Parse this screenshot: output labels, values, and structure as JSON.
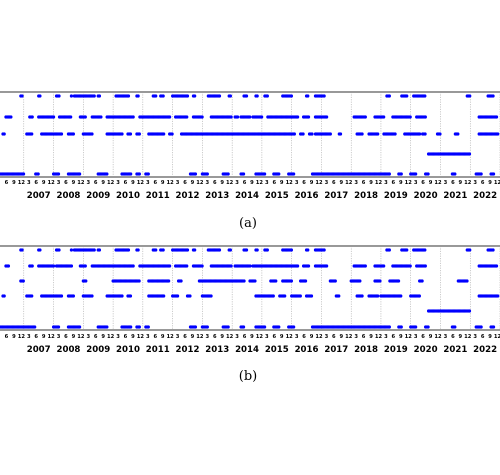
{
  "colors": {
    "marker": "#0000ff",
    "frame": "#000000",
    "grid": "#9a9a9a"
  },
  "chart_data": [
    {
      "type": "scatter",
      "caption": "(a)",
      "x_range": [
        2006.2,
        2023.0
      ],
      "month_ticks": [
        "3",
        "6",
        "9",
        "12"
      ],
      "year_labels": [
        "2007",
        "2008",
        "2009",
        "2010",
        "2011",
        "2012",
        "2013",
        "2014",
        "2015",
        "2016",
        "2017",
        "2018",
        "2019",
        "2020",
        "2021",
        "2022"
      ],
      "grid": "dotted vertical lines at year boundaries",
      "levels": [
        {
          "level": 5,
          "segments": [
            [
              2006.9,
              2006.95
            ],
            [
              2007.5,
              2007.55
            ],
            [
              2008.1,
              2008.2
            ],
            [
              2008.6,
              2008.62
            ],
            [
              2008.7,
              2009.4
            ],
            [
              2009.5,
              2009.55
            ],
            [
              2010.1,
              2010.55
            ],
            [
              2010.8,
              2010.85
            ],
            [
              2011.35,
              2011.45
            ],
            [
              2011.6,
              2011.7
            ],
            [
              2012.0,
              2012.5
            ],
            [
              2012.7,
              2012.75
            ],
            [
              2013.2,
              2013.6
            ],
            [
              2013.9,
              2013.95
            ],
            [
              2014.4,
              2014.5
            ],
            [
              2014.8,
              2014.85
            ],
            [
              2015.1,
              2015.2
            ],
            [
              2015.7,
              2016.0
            ],
            [
              2016.5,
              2016.55
            ],
            [
              2016.8,
              2017.1
            ],
            [
              2019.2,
              2019.3
            ],
            [
              2019.7,
              2019.9
            ],
            [
              2020.1,
              2020.5
            ],
            [
              2021.9,
              2022.0
            ],
            [
              2022.6,
              2022.8
            ]
          ]
        },
        {
          "level": 4,
          "segments": [
            [
              2006.4,
              2006.6
            ],
            [
              2007.2,
              2007.3
            ],
            [
              2007.5,
              2008.0
            ],
            [
              2008.2,
              2008.6
            ],
            [
              2008.9,
              2009.1
            ],
            [
              2009.3,
              2009.6
            ],
            [
              2009.8,
              2010.7
            ],
            [
              2010.9,
              2011.9
            ],
            [
              2012.1,
              2012.5
            ],
            [
              2012.7,
              2013.0
            ],
            [
              2013.3,
              2014.0
            ],
            [
              2014.1,
              2014.2
            ],
            [
              2014.3,
              2014.6
            ],
            [
              2014.7,
              2015.0
            ],
            [
              2015.2,
              2016.2
            ],
            [
              2016.4,
              2016.6
            ],
            [
              2016.8,
              2017.2
            ],
            [
              2018.1,
              2018.5
            ],
            [
              2018.8,
              2019.1
            ],
            [
              2019.4,
              2020.0
            ],
            [
              2020.2,
              2020.5
            ],
            [
              2022.3,
              2022.9
            ]
          ]
        },
        {
          "level": 3,
          "segments": [
            [
              2006.3,
              2006.35
            ],
            [
              2007.1,
              2007.3
            ],
            [
              2007.6,
              2008.3
            ],
            [
              2008.5,
              2008.7
            ],
            [
              2009.0,
              2009.3
            ],
            [
              2009.8,
              2010.3
            ],
            [
              2010.5,
              2010.6
            ],
            [
              2010.8,
              2010.9
            ],
            [
              2011.2,
              2011.7
            ],
            [
              2011.9,
              2012.0
            ],
            [
              2012.3,
              2016.1
            ],
            [
              2016.3,
              2016.4
            ],
            [
              2016.6,
              2016.7
            ],
            [
              2016.8,
              2017.3
            ],
            [
              2017.6,
              2017.65
            ],
            [
              2018.2,
              2018.4
            ],
            [
              2018.6,
              2018.9
            ],
            [
              2019.1,
              2019.5
            ],
            [
              2019.8,
              2020.3
            ],
            [
              2020.4,
              2020.5
            ],
            [
              2020.9,
              2021.0
            ],
            [
              2021.5,
              2021.6
            ],
            [
              2022.3,
              2022.95
            ]
          ]
        },
        {
          "level": 2,
          "segments": [
            [
              2020.6,
              2022.0
            ]
          ]
        },
        {
          "level": 1,
          "segments": [
            [
              2006.2,
              2007.0
            ],
            [
              2007.4,
              2007.5
            ],
            [
              2008.0,
              2008.2
            ],
            [
              2008.5,
              2008.9
            ],
            [
              2009.5,
              2009.8
            ],
            [
              2010.3,
              2010.6
            ],
            [
              2010.8,
              2010.9
            ],
            [
              2011.1,
              2011.2
            ],
            [
              2012.6,
              2012.8
            ],
            [
              2013.0,
              2013.2
            ],
            [
              2013.7,
              2013.9
            ],
            [
              2014.3,
              2014.4
            ],
            [
              2014.8,
              2015.1
            ],
            [
              2015.4,
              2015.6
            ],
            [
              2015.9,
              2016.1
            ],
            [
              2016.7,
              2019.3
            ],
            [
              2019.6,
              2019.7
            ],
            [
              2020.0,
              2020.2
            ],
            [
              2020.5,
              2020.6
            ],
            [
              2021.4,
              2021.5
            ],
            [
              2022.2,
              2022.4
            ],
            [
              2022.7,
              2022.8
            ]
          ]
        }
      ]
    },
    {
      "type": "scatter",
      "caption": "(b)",
      "x_range": [
        2006.2,
        2023.0
      ],
      "month_ticks": [
        "3",
        "6",
        "9",
        "12"
      ],
      "year_labels": [
        "2007",
        "2008",
        "2009",
        "2010",
        "2011",
        "2012",
        "2013",
        "2014",
        "2015",
        "2016",
        "2017",
        "2018",
        "2019",
        "2020",
        "2021",
        "2022"
      ],
      "grid": "dotted vertical lines at year boundaries",
      "levels": [
        {
          "level": 5,
          "segments": [
            [
              2006.9,
              2006.95
            ],
            [
              2007.5,
              2007.55
            ],
            [
              2008.1,
              2008.2
            ],
            [
              2008.6,
              2008.62
            ],
            [
              2008.7,
              2009.4
            ],
            [
              2009.5,
              2009.55
            ],
            [
              2010.1,
              2010.55
            ],
            [
              2010.8,
              2010.85
            ],
            [
              2011.35,
              2011.45
            ],
            [
              2011.6,
              2011.7
            ],
            [
              2012.0,
              2012.5
            ],
            [
              2012.7,
              2012.75
            ],
            [
              2013.2,
              2013.6
            ],
            [
              2013.9,
              2013.95
            ],
            [
              2014.4,
              2014.5
            ],
            [
              2014.8,
              2014.85
            ],
            [
              2015.1,
              2015.2
            ],
            [
              2015.7,
              2016.0
            ],
            [
              2016.5,
              2016.55
            ],
            [
              2016.8,
              2017.1
            ],
            [
              2019.2,
              2019.3
            ],
            [
              2019.7,
              2019.9
            ],
            [
              2020.1,
              2020.5
            ],
            [
              2021.9,
              2022.0
            ],
            [
              2022.6,
              2022.8
            ]
          ]
        },
        {
          "level": 4,
          "segments": [
            [
              2006.4,
              2006.5
            ],
            [
              2007.2,
              2007.3
            ],
            [
              2007.5,
              2008.0
            ],
            [
              2008.1,
              2008.6
            ],
            [
              2008.9,
              2009.1
            ],
            [
              2009.3,
              2010.7
            ],
            [
              2010.9,
              2011.9
            ],
            [
              2012.1,
              2012.5
            ],
            [
              2012.7,
              2013.0
            ],
            [
              2013.3,
              2014.0
            ],
            [
              2014.1,
              2014.6
            ],
            [
              2014.7,
              2016.2
            ],
            [
              2016.4,
              2016.6
            ],
            [
              2016.8,
              2017.2
            ],
            [
              2018.1,
              2018.5
            ],
            [
              2018.8,
              2019.1
            ],
            [
              2019.4,
              2020.0
            ],
            [
              2020.2,
              2020.5
            ],
            [
              2022.3,
              2022.9
            ]
          ]
        },
        {
          "level": 3,
          "segments": [
            [
              2006.3,
              2006.35
            ],
            [
              2007.1,
              2007.3
            ],
            [
              2007.6,
              2008.3
            ],
            [
              2008.5,
              2008.7
            ],
            [
              2009.0,
              2009.3
            ],
            [
              2009.8,
              2010.3
            ],
            [
              2010.5,
              2010.6
            ],
            [
              2011.2,
              2011.7
            ],
            [
              2012.0,
              2012.2
            ],
            [
              2012.5,
              2012.6
            ],
            [
              2013.0,
              2013.3
            ],
            [
              2014.8,
              2015.4
            ],
            [
              2015.6,
              2015.8
            ],
            [
              2016.0,
              2016.3
            ],
            [
              2016.5,
              2016.7
            ],
            [
              2017.5,
              2017.6
            ],
            [
              2018.2,
              2018.4
            ],
            [
              2018.6,
              2018.9
            ],
            [
              2019.0,
              2019.7
            ],
            [
              2020.0,
              2020.3
            ],
            [
              2022.3,
              2022.95
            ]
          ]
        },
        {
          "level": 2,
          "segments": [
            [
              2006.9,
              2007.0
            ],
            [
              2009.0,
              2009.1
            ],
            [
              2010.0,
              2010.9
            ],
            [
              2011.2,
              2011.9
            ],
            [
              2012.2,
              2012.3
            ],
            [
              2012.9,
              2014.4
            ],
            [
              2014.6,
              2014.8
            ],
            [
              2015.3,
              2015.5
            ],
            [
              2015.7,
              2016.0
            ],
            [
              2016.3,
              2016.5
            ],
            [
              2017.3,
              2017.5
            ],
            [
              2018.0,
              2018.3
            ],
            [
              2018.8,
              2019.0
            ],
            [
              2019.3,
              2019.6
            ],
            [
              2020.3,
              2020.4
            ],
            [
              2021.6,
              2021.9
            ]
          ]
        },
        {
          "level": 1.5,
          "segments": [
            [
              2020.6,
              2022.0
            ]
          ]
        },
        {
          "level": 1,
          "segments": [
            [
              2006.2,
              2007.4
            ],
            [
              2008.0,
              2008.2
            ],
            [
              2008.5,
              2008.9
            ],
            [
              2009.5,
              2009.8
            ],
            [
              2010.3,
              2010.6
            ],
            [
              2010.8,
              2010.9
            ],
            [
              2011.1,
              2011.2
            ],
            [
              2012.6,
              2012.8
            ],
            [
              2013.0,
              2013.2
            ],
            [
              2013.7,
              2013.9
            ],
            [
              2014.3,
              2014.4
            ],
            [
              2014.8,
              2015.1
            ],
            [
              2015.4,
              2015.6
            ],
            [
              2015.9,
              2016.1
            ],
            [
              2016.7,
              2019.3
            ],
            [
              2019.6,
              2019.7
            ],
            [
              2020.0,
              2020.2
            ],
            [
              2020.5,
              2020.6
            ],
            [
              2021.4,
              2021.5
            ],
            [
              2022.2,
              2022.4
            ],
            [
              2022.7,
              2022.8
            ]
          ]
        }
      ]
    }
  ]
}
